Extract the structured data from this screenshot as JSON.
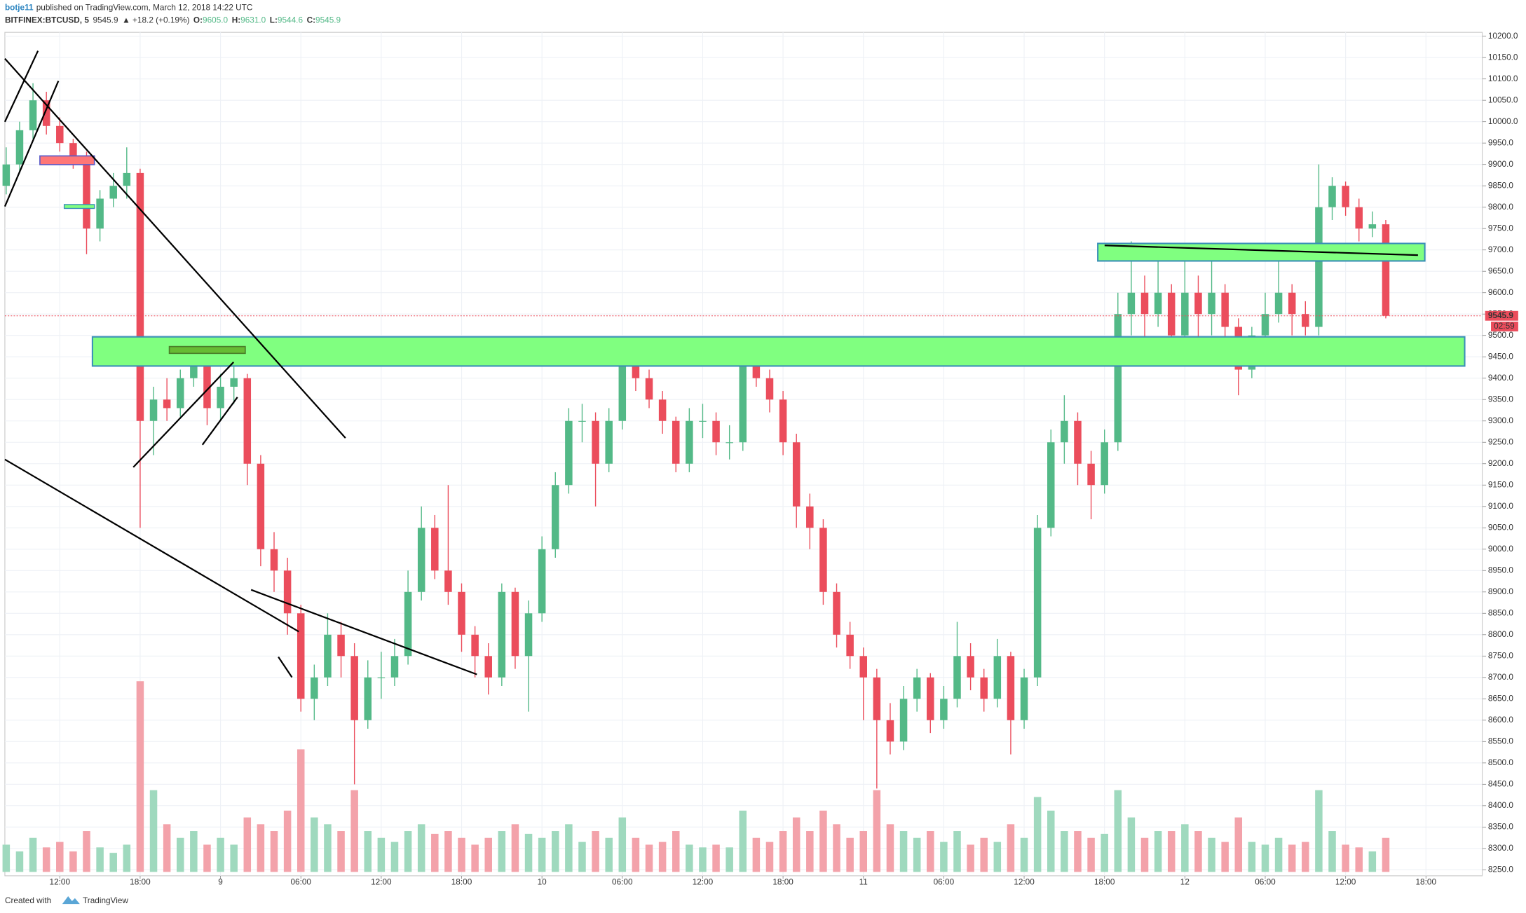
{
  "chart_data": {
    "type": "candlestick",
    "header": {
      "author": "botje11",
      "published": "published on TradingView.com, March 12, 2018 14:22 UTC",
      "symbol": "BITFINEX:BTCUSD, 5",
      "last": "9545.9",
      "change": "▲ +18.2 (+0.19%)",
      "fields": [
        {
          "label": "O:",
          "value": "9605.0"
        },
        {
          "label": "H:",
          "value": "9631.0"
        },
        {
          "label": "L:",
          "value": "9544.6"
        },
        {
          "label": "C:",
          "value": "9545.9"
        }
      ]
    },
    "footer": {
      "created": "Created with",
      "brand": "TradingView"
    },
    "countdown": "02:59",
    "up_color": "#53b987",
    "down_color": "#eb4d5c",
    "volume_up_color": "#9fd9be",
    "volume_down_color": "#f3a2aa",
    "xlim": [
      7.9,
      118.2
    ],
    "xticks": [
      {
        "value": 12,
        "label": "12:00"
      },
      {
        "value": 18,
        "label": "18:00"
      },
      {
        "value": 24,
        "label": "9"
      },
      {
        "value": 30,
        "label": "06:00"
      },
      {
        "value": 36,
        "label": "12:00"
      },
      {
        "value": 42,
        "label": "18:00"
      },
      {
        "value": 48,
        "label": "10"
      },
      {
        "value": 54,
        "label": "06:00"
      },
      {
        "value": 60,
        "label": "12:00"
      },
      {
        "value": 66,
        "label": "18:00"
      },
      {
        "value": 72,
        "label": "11"
      },
      {
        "value": 78,
        "label": "06:00"
      },
      {
        "value": 84,
        "label": "12:00"
      },
      {
        "value": 90,
        "label": "18:00"
      },
      {
        "value": 96,
        "label": "12"
      },
      {
        "value": 102,
        "label": "06:00"
      },
      {
        "value": 108,
        "label": "12:00"
      },
      {
        "value": 114,
        "label": "18:00"
      }
    ],
    "ylim": [
      8236,
      10209
    ],
    "yticks": [
      {
        "value": 8250,
        "label": "8250.0"
      },
      {
        "value": 8300,
        "label": "8300.0"
      },
      {
        "value": 8350,
        "label": "8350.0"
      },
      {
        "value": 8400,
        "label": "8400.0"
      },
      {
        "value": 8450,
        "label": "8450.0"
      },
      {
        "value": 8500,
        "label": "8500.0"
      },
      {
        "value": 8550,
        "label": "8550.0"
      },
      {
        "value": 8600,
        "label": "8600.0"
      },
      {
        "value": 8650,
        "label": "8650.0"
      },
      {
        "value": 8700,
        "label": "8700.0"
      },
      {
        "value": 8750,
        "label": "8750.0"
      },
      {
        "value": 8800,
        "label": "8800.0"
      },
      {
        "value": 8850,
        "label": "8850.0"
      },
      {
        "value": 8900,
        "label": "8900.0"
      },
      {
        "value": 8950,
        "label": "8950.0"
      },
      {
        "value": 9000,
        "label": "9000.0"
      },
      {
        "value": 9050,
        "label": "9050.0"
      },
      {
        "value": 9100,
        "label": "9100.0"
      },
      {
        "value": 9150,
        "label": "9150.0"
      },
      {
        "value": 9200,
        "label": "9200.0"
      },
      {
        "value": 9250,
        "label": "9250.0"
      },
      {
        "value": 9300,
        "label": "9300.0"
      },
      {
        "value": 9350,
        "label": "9350.0"
      },
      {
        "value": 9400,
        "label": "9400.0"
      },
      {
        "value": 9450,
        "label": "9450.0"
      },
      {
        "value": 9500,
        "label": "9500.0"
      },
      {
        "value": 9550,
        "label": "9550.0"
      },
      {
        "value": 9600,
        "label": "9600.0"
      },
      {
        "value": 9650,
        "label": "9650.0"
      },
      {
        "value": 9700,
        "label": "9700.0"
      },
      {
        "value": 9750,
        "label": "9750.0"
      },
      {
        "value": 9800,
        "label": "9800.0"
      },
      {
        "value": 9850,
        "label": "9850.0"
      },
      {
        "value": 9900,
        "label": "9900.0"
      },
      {
        "value": 9950,
        "label": "9950.0"
      },
      {
        "value": 10000,
        "label": "10000.0"
      },
      {
        "value": 10050,
        "label": "10050.0"
      },
      {
        "value": 10100,
        "label": "10100.0"
      },
      {
        "value": 10150,
        "label": "10150.0"
      },
      {
        "value": 10200,
        "label": "10200.0"
      }
    ],
    "grid": true,
    "x": [
      8,
      9,
      10,
      11,
      12,
      13,
      14,
      15,
      16,
      17,
      18,
      19,
      20,
      21,
      22,
      23,
      24,
      25,
      26,
      27,
      28,
      29,
      30,
      31,
      32,
      33,
      34,
      35,
      36,
      37,
      38,
      39,
      40,
      41,
      42,
      43,
      44,
      45,
      46,
      47,
      48,
      49,
      50,
      51,
      52,
      53,
      54,
      55,
      56,
      57,
      58,
      59,
      60,
      61,
      62,
      63,
      64,
      65,
      66,
      67,
      68,
      69,
      70,
      71,
      72,
      73,
      74,
      75,
      76,
      77,
      78,
      79,
      80,
      81,
      82,
      83,
      84,
      85,
      86,
      87,
      88,
      89,
      90,
      91,
      92,
      93,
      94,
      95,
      96,
      97,
      98,
      99,
      100,
      101,
      102,
      103,
      104,
      105,
      106,
      107,
      108,
      109,
      110,
      111
    ],
    "ohlc": [
      [
        9850,
        9940,
        9830,
        9900
      ],
      [
        9900,
        10000,
        9880,
        9980
      ],
      [
        9980,
        10090,
        9960,
        10050
      ],
      [
        10050,
        10070,
        9970,
        9990
      ],
      [
        9990,
        10010,
        9930,
        9950
      ],
      [
        9950,
        9960,
        9890,
        9920
      ],
      [
        9920,
        9930,
        9690,
        9750
      ],
      [
        9750,
        9840,
        9720,
        9820
      ],
      [
        9820,
        9880,
        9800,
        9850
      ],
      [
        9850,
        9940,
        9820,
        9880
      ],
      [
        9880,
        9890,
        9050,
        9300
      ],
      [
        9300,
        9380,
        9220,
        9350
      ],
      [
        9350,
        9400,
        9300,
        9330
      ],
      [
        9330,
        9420,
        9310,
        9400
      ],
      [
        9400,
        9480,
        9380,
        9450
      ],
      [
        9450,
        9460,
        9290,
        9330
      ],
      [
        9330,
        9410,
        9300,
        9380
      ],
      [
        9380,
        9430,
        9340,
        9400
      ],
      [
        9400,
        9410,
        9150,
        9200
      ],
      [
        9200,
        9220,
        8960,
        9000
      ],
      [
        9000,
        9040,
        8900,
        8950
      ],
      [
        8950,
        8980,
        8800,
        8850
      ],
      [
        8850,
        8870,
        8620,
        8650
      ],
      [
        8650,
        8730,
        8600,
        8700
      ],
      [
        8700,
        8850,
        8680,
        8800
      ],
      [
        8800,
        8830,
        8700,
        8750
      ],
      [
        8750,
        8780,
        8450,
        8600
      ],
      [
        8600,
        8740,
        8580,
        8700
      ],
      [
        8700,
        8760,
        8650,
        8700
      ],
      [
        8700,
        8790,
        8680,
        8750
      ],
      [
        8750,
        8950,
        8730,
        8900
      ],
      [
        8900,
        9100,
        8880,
        9050
      ],
      [
        9050,
        9080,
        8930,
        8950
      ],
      [
        8950,
        9150,
        8870,
        8900
      ],
      [
        8900,
        8920,
        8760,
        8800
      ],
      [
        8800,
        8820,
        8700,
        8750
      ],
      [
        8750,
        8780,
        8660,
        8700
      ],
      [
        8700,
        8920,
        8680,
        8900
      ],
      [
        8900,
        8910,
        8720,
        8750
      ],
      [
        8750,
        8880,
        8620,
        8850
      ],
      [
        8850,
        9030,
        8830,
        9000
      ],
      [
        9000,
        9180,
        8980,
        9150
      ],
      [
        9150,
        9330,
        9130,
        9300
      ],
      [
        9300,
        9340,
        9250,
        9300
      ],
      [
        9300,
        9320,
        9100,
        9200
      ],
      [
        9200,
        9330,
        9180,
        9300
      ],
      [
        9300,
        9480,
        9280,
        9450
      ],
      [
        9450,
        9470,
        9370,
        9400
      ],
      [
        9400,
        9420,
        9330,
        9350
      ],
      [
        9350,
        9370,
        9270,
        9300
      ],
      [
        9300,
        9310,
        9180,
        9200
      ],
      [
        9200,
        9330,
        9180,
        9300
      ],
      [
        9300,
        9340,
        9260,
        9300
      ],
      [
        9300,
        9320,
        9220,
        9250
      ],
      [
        9250,
        9290,
        9210,
        9250
      ],
      [
        9250,
        9480,
        9230,
        9450
      ],
      [
        9450,
        9480,
        9380,
        9400
      ],
      [
        9400,
        9420,
        9320,
        9350
      ],
      [
        9350,
        9370,
        9220,
        9250
      ],
      [
        9250,
        9270,
        9050,
        9100
      ],
      [
        9100,
        9130,
        9000,
        9050
      ],
      [
        9050,
        9070,
        8870,
        8900
      ],
      [
        8900,
        8920,
        8770,
        8800
      ],
      [
        8800,
        8830,
        8720,
        8750
      ],
      [
        8750,
        8770,
        8600,
        8700
      ],
      [
        8700,
        8720,
        8440,
        8600
      ],
      [
        8600,
        8640,
        8520,
        8550
      ],
      [
        8550,
        8680,
        8530,
        8650
      ],
      [
        8650,
        8720,
        8620,
        8700
      ],
      [
        8700,
        8710,
        8570,
        8600
      ],
      [
        8600,
        8680,
        8580,
        8650
      ],
      [
        8650,
        8830,
        8630,
        8750
      ],
      [
        8750,
        8780,
        8670,
        8700
      ],
      [
        8700,
        8720,
        8620,
        8650
      ],
      [
        8650,
        8790,
        8630,
        8750
      ],
      [
        8750,
        8760,
        8520,
        8600
      ],
      [
        8600,
        8720,
        8580,
        8700
      ],
      [
        8700,
        9080,
        8680,
        9050
      ],
      [
        9050,
        9280,
        9030,
        9250
      ],
      [
        9250,
        9360,
        9200,
        9300
      ],
      [
        9300,
        9320,
        9150,
        9200
      ],
      [
        9200,
        9230,
        9070,
        9150
      ],
      [
        9150,
        9280,
        9130,
        9250
      ],
      [
        9250,
        9600,
        9230,
        9550
      ],
      [
        9550,
        9720,
        9500,
        9600
      ],
      [
        9600,
        9640,
        9470,
        9550
      ],
      [
        9550,
        9710,
        9520,
        9600
      ],
      [
        9600,
        9620,
        9450,
        9500
      ],
      [
        9500,
        9710,
        9480,
        9600
      ],
      [
        9600,
        9640,
        9490,
        9550
      ],
      [
        9550,
        9680,
        9500,
        9600
      ],
      [
        9600,
        9620,
        9480,
        9520
      ],
      [
        9520,
        9540,
        9360,
        9420
      ],
      [
        9420,
        9520,
        9400,
        9500
      ],
      [
        9500,
        9600,
        9480,
        9550
      ],
      [
        9550,
        9680,
        9530,
        9600
      ],
      [
        9600,
        9620,
        9500,
        9550
      ],
      [
        9550,
        9580,
        9500,
        9520
      ],
      [
        9520,
        9900,
        9500,
        9800
      ],
      [
        9800,
        9870,
        9770,
        9850
      ],
      [
        9850,
        9860,
        9780,
        9800
      ],
      [
        9800,
        9820,
        9720,
        9750
      ],
      [
        9750,
        9790,
        9730,
        9760
      ],
      [
        9760,
        9770,
        9540,
        9545.9
      ]
    ],
    "volume": [
      20,
      15,
      25,
      18,
      22,
      15,
      30,
      18,
      14,
      20,
      140,
      60,
      35,
      25,
      30,
      20,
      25,
      20,
      40,
      35,
      30,
      45,
      90,
      40,
      35,
      30,
      60,
      30,
      25,
      22,
      30,
      35,
      28,
      30,
      25,
      20,
      25,
      30,
      35,
      28,
      25,
      30,
      35,
      22,
      30,
      25,
      40,
      25,
      20,
      22,
      30,
      20,
      18,
      20,
      18,
      45,
      25,
      22,
      30,
      40,
      30,
      45,
      35,
      25,
      30,
      60,
      35,
      30,
      25,
      30,
      22,
      30,
      20,
      25,
      22,
      35,
      25,
      55,
      45,
      30,
      30,
      25,
      28,
      60,
      40,
      25,
      30,
      30,
      35,
      30,
      25,
      22,
      40,
      22,
      20,
      25,
      20,
      22,
      60,
      30,
      20,
      18,
      15,
      25
    ]
  }
}
